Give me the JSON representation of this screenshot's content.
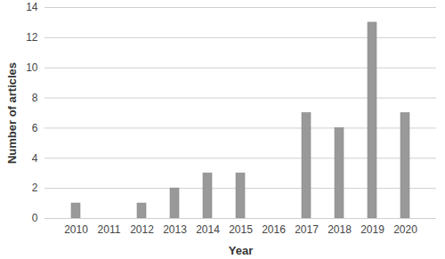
{
  "chart_data": {
    "type": "bar",
    "categories": [
      "2010",
      "2011",
      "2012",
      "2013",
      "2014",
      "2015",
      "2016",
      "2017",
      "2018",
      "2019",
      "2020"
    ],
    "values": [
      1,
      0,
      1,
      2,
      3,
      3,
      0,
      7,
      6,
      13,
      7
    ],
    "color": "#999999",
    "xlabel": "Year",
    "ylabel": "Number of articles",
    "ylim": [
      0,
      14
    ],
    "yticks": [
      0,
      2,
      4,
      6,
      8,
      10,
      12,
      14
    ],
    "grid": true
  }
}
